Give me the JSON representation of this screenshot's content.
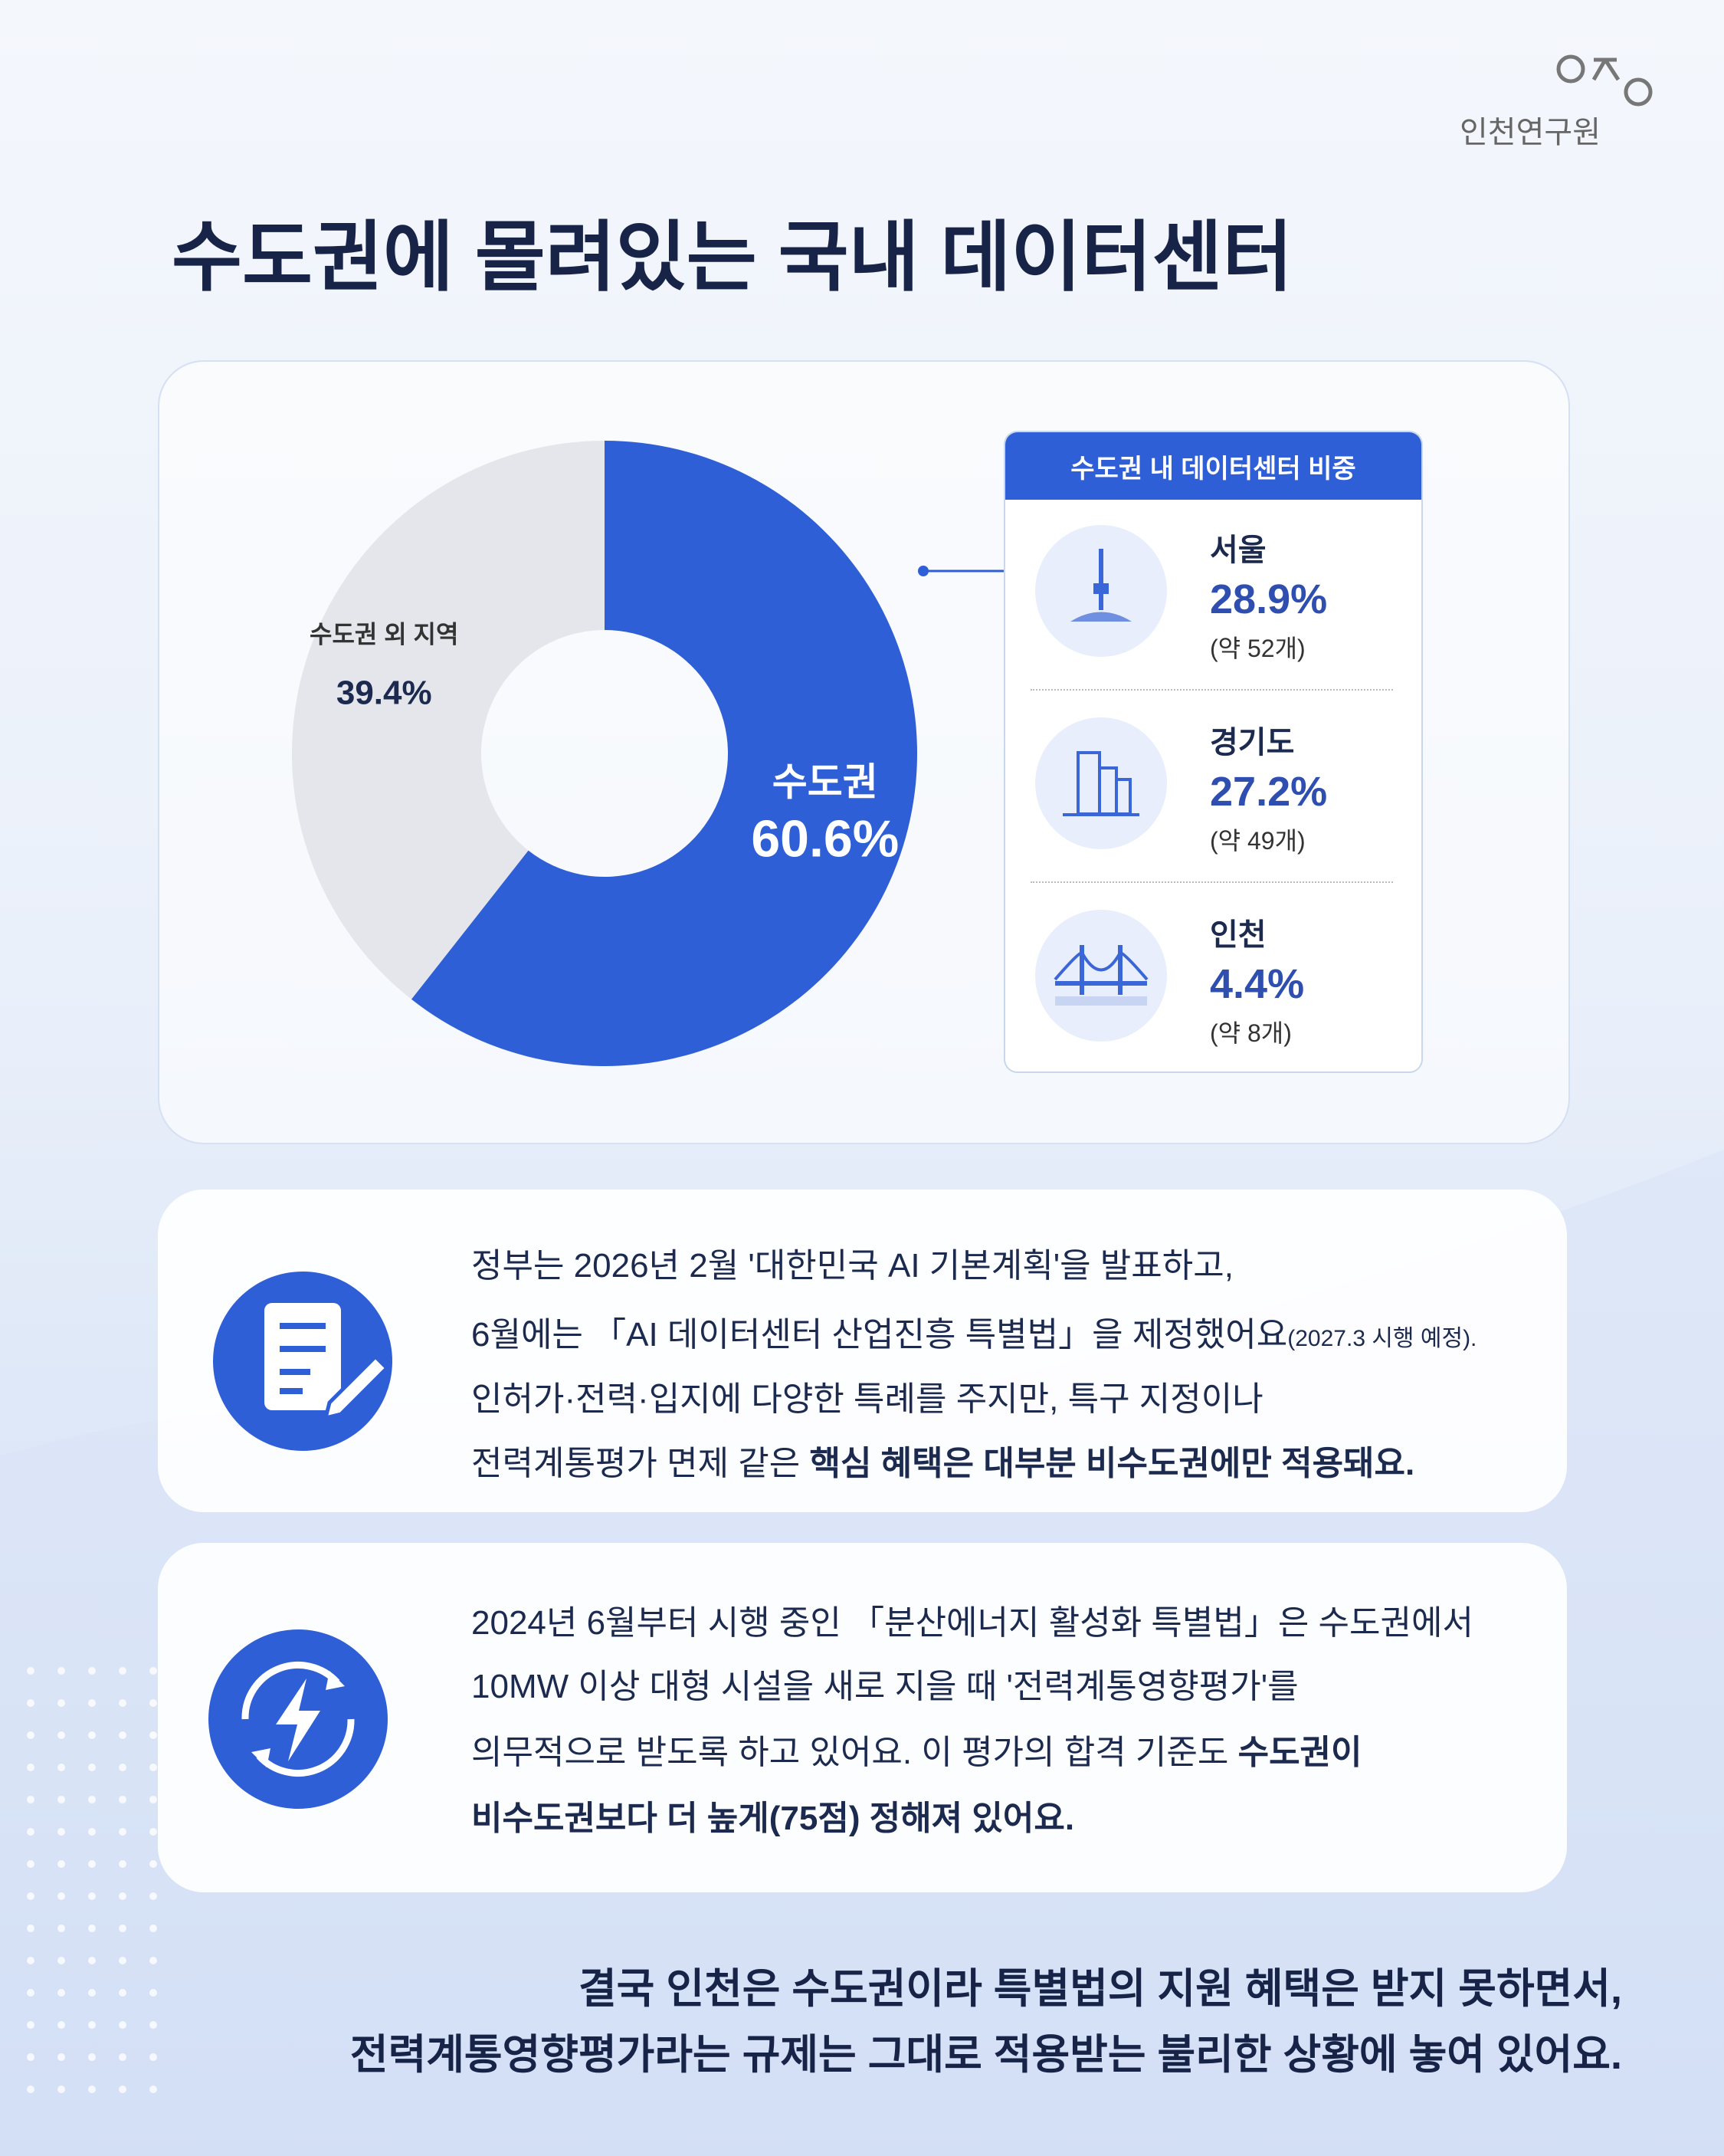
{
  "logo": "인천연구원",
  "title": "수도권에 몰려있는 국내 데이터센터",
  "chart_data": {
    "type": "pie",
    "categories": [
      "수도권",
      "수도권 외 지역"
    ],
    "values": [
      60.6,
      39.4
    ],
    "value_labels": [
      "60.6%",
      "39.4%"
    ],
    "colors": [
      "#2f5fd6",
      "#e4e6eb"
    ],
    "donut": true
  },
  "breakdown": {
    "title": "수도권 내 데이터센터 비중",
    "items": [
      {
        "name": "서울",
        "value": "28.9%",
        "count": "(약 52개)"
      },
      {
        "name": "경기도",
        "value": "27.2%",
        "count": "(약 49개)"
      },
      {
        "name": "인천",
        "value": "4.4%",
        "count": "(약 8개)"
      }
    ]
  },
  "notes": [
    {
      "lines": [
        [
          {
            "text": "정부는 2026년 2월 '대한민국 AI 기본계획'을 발표하고,"
          }
        ],
        [
          {
            "text": "6월에는 「AI 데이터센터 산업진흥 특별법」을 제정했어요"
          },
          {
            "text": "(2027.3 시행 예정).",
            "small": true
          }
        ],
        [
          {
            "text": "인허가·전력·입지에 다양한 특례를 주지만, 특구 지정이나"
          }
        ],
        [
          {
            "text": "전력계통평가 면제 같은 "
          },
          {
            "text": "핵심 혜택은 대부분 비수도권에만 적용돼요.",
            "strong": true
          }
        ]
      ]
    },
    {
      "lines": [
        [
          {
            "text": "2024년 6월부터 시행 중인 「분산에너지 활성화 특별법」은 수도권에서"
          }
        ],
        [
          {
            "text": "10MW 이상 대형 시설을 새로 지을 때 '전력계통영향평가'를"
          }
        ],
        [
          {
            "text": "의무적으로 받도록 하고 있어요. 이 평가의 합격 기준도 "
          },
          {
            "text": "수도권이",
            "strong": true
          }
        ],
        [
          {
            "text": "비수도권보다 더 높게(75점) 정해져 있어요.",
            "strong": true
          }
        ]
      ]
    }
  ],
  "conclusion": [
    "결국 인천은 수도권이라 특별법의 지원 혜택은 받지 못하면서,",
    "전력계통영향평가라는 규제는 그대로 적용받는 불리한 상황에 놓여 있어요."
  ]
}
